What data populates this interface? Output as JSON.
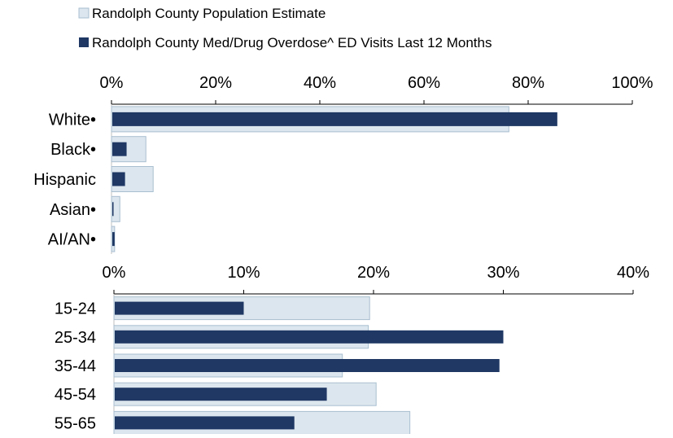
{
  "legend": {
    "population_label": "Randolph County Population Estimate",
    "visits_label": "Randolph County Med/Drug Overdose^ ED Visits Last 12 Months"
  },
  "colors": {
    "population_fill": "#dce6ee",
    "population_stroke": "#a9bfd0",
    "visits_fill": "#1f3864",
    "axis": "#000000"
  },
  "chart_data": [
    {
      "type": "bar",
      "orientation": "horizontal",
      "title": "",
      "xlim": [
        0,
        100
      ],
      "x_ticks": [
        0,
        20,
        40,
        60,
        80,
        100
      ],
      "x_tick_labels": [
        "0%",
        "20%",
        "40%",
        "60%",
        "80%",
        "100%"
      ],
      "categories": [
        "White•",
        "Black•",
        "Hispanic",
        "Asian•",
        "AI/AN•"
      ],
      "series": [
        {
          "name": "Randolph County Population Estimate",
          "values": [
            76.3,
            6.6,
            8.0,
            1.6,
            0.6
          ]
        },
        {
          "name": "Randolph County Med/Drug Overdose^ ED Visits Last 12 Months",
          "values": [
            85.6,
            2.9,
            2.6,
            0.3,
            0.6
          ]
        }
      ]
    },
    {
      "type": "bar",
      "orientation": "horizontal",
      "title": "",
      "xlim": [
        0,
        40
      ],
      "x_ticks": [
        0,
        10,
        20,
        30,
        40
      ],
      "x_tick_labels": [
        "0%",
        "10%",
        "20%",
        "30%",
        "40%"
      ],
      "categories": [
        "15-24",
        "25-34",
        "35-44",
        "45-54",
        "55-65"
      ],
      "series": [
        {
          "name": "Randolph County Population Estimate",
          "values": [
            19.7,
            19.6,
            17.6,
            20.2,
            22.8
          ]
        },
        {
          "name": "Randolph County Med/Drug Overdose^ ED Visits Last 12 Months",
          "values": [
            10.0,
            30.0,
            29.7,
            16.4,
            13.9
          ]
        }
      ]
    }
  ]
}
